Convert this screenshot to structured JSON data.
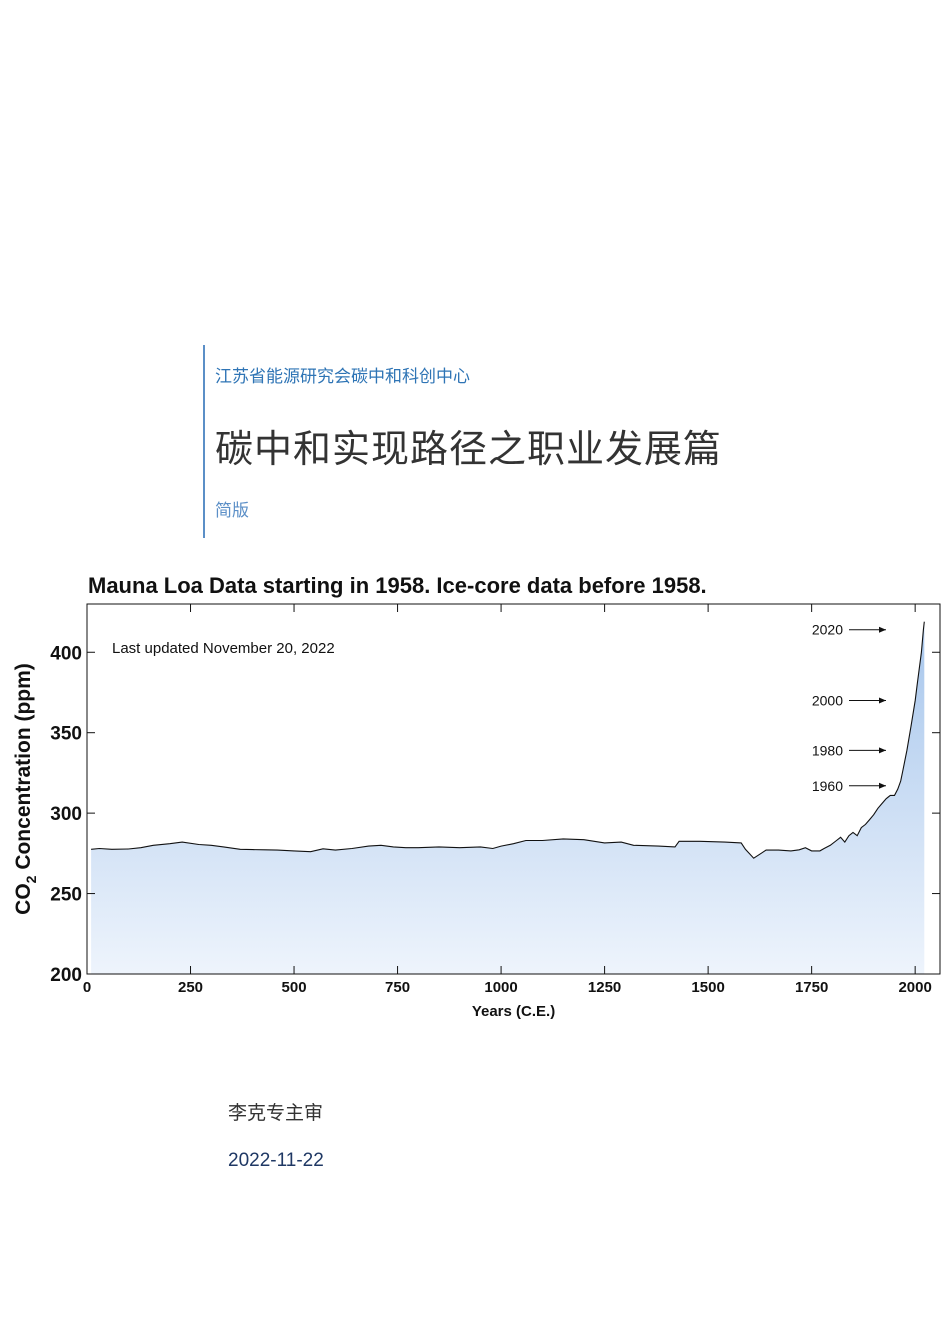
{
  "header": {
    "organization": "江苏省能源研究会碳中和科创中心",
    "title": "碳中和实现路径之职业发展篇",
    "subtitle": "简版"
  },
  "chart_data": {
    "type": "area",
    "title": "Mauna Loa Data starting in 1958. Ice-core data before 1958.",
    "annotation": "Last updated November 20, 2022",
    "xlabel": "Years (C.E.)",
    "ylabel": "CO2 Concentration (ppm)",
    "xlim": [
      0,
      2060
    ],
    "ylim": [
      200,
      430
    ],
    "xticks": [
      0,
      250,
      500,
      750,
      1000,
      1250,
      1500,
      1750,
      2000
    ],
    "yticks": [
      200,
      250,
      300,
      350,
      400
    ],
    "fill_color_top": "#a7c6ec",
    "fill_color_bottom": "#eef4fc",
    "line_color": "#111111",
    "year_markers": [
      {
        "label": "2020",
        "value": 414
      },
      {
        "label": "2000",
        "value": 370
      },
      {
        "label": "1980",
        "value": 339
      },
      {
        "label": "1960",
        "value": 317
      }
    ],
    "x": [
      10,
      30,
      60,
      100,
      130,
      160,
      200,
      230,
      270,
      300,
      330,
      370,
      400,
      430,
      460,
      500,
      540,
      570,
      600,
      640,
      680,
      710,
      740,
      770,
      800,
      850,
      900,
      950,
      980,
      1000,
      1030,
      1060,
      1100,
      1150,
      1200,
      1250,
      1290,
      1320,
      1380,
      1420,
      1430,
      1480,
      1540,
      1580,
      1590,
      1610,
      1640,
      1670,
      1700,
      1720,
      1735,
      1750,
      1770,
      1780,
      1795,
      1810,
      1820,
      1830,
      1840,
      1850,
      1860,
      1870,
      1880,
      1890,
      1900,
      1910,
      1920,
      1930,
      1940,
      1950,
      1958,
      1965,
      1970,
      1980,
      1990,
      2000,
      2005,
      2010,
      2015,
      2020,
      2022
    ],
    "y": [
      277.5,
      278,
      277.5,
      277.7,
      278.5,
      280,
      281,
      282,
      280.5,
      280,
      279,
      277.5,
      277.3,
      277.2,
      277,
      276.5,
      276,
      277.8,
      277,
      278,
      279.5,
      280,
      279,
      278.5,
      278.5,
      279,
      278.5,
      279,
      278,
      279.5,
      281,
      283,
      283,
      284,
      283.5,
      281.5,
      282,
      280,
      279.5,
      279,
      282.5,
      282.5,
      282,
      281.5,
      277.5,
      272,
      277,
      277,
      276.5,
      277.2,
      278.5,
      276.5,
      276.5,
      278,
      280,
      283,
      285,
      282,
      286,
      288,
      286,
      291,
      293,
      296,
      299,
      303,
      306,
      309,
      311,
      311,
      315,
      320,
      326,
      339,
      354,
      370,
      380,
      390,
      400,
      414,
      419
    ]
  },
  "footer": {
    "author": "李克专主审",
    "date": "2022-11-22"
  }
}
